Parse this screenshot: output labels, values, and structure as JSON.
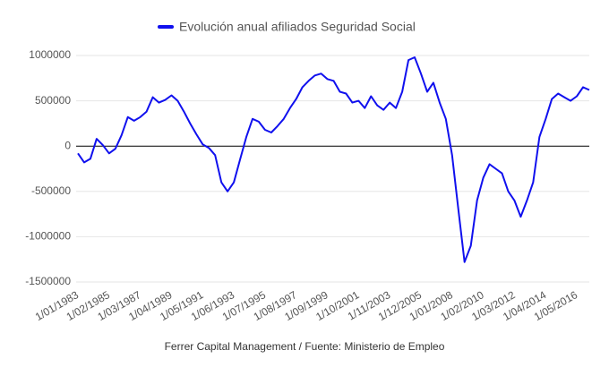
{
  "chart_data": {
    "type": "line",
    "categories": [
      "1/01/1983",
      null,
      null,
      null,
      null,
      "1/02/1985",
      null,
      null,
      null,
      null,
      "1/03/1987",
      null,
      null,
      null,
      null,
      "1/04/1989",
      null,
      null,
      null,
      null,
      "1/05/1991",
      null,
      null,
      null,
      null,
      "1/06/1993",
      null,
      null,
      null,
      null,
      "1/07/1995",
      null,
      null,
      null,
      null,
      "1/08/1997",
      null,
      null,
      null,
      null,
      "1/09/1999",
      null,
      null,
      null,
      null,
      "1/10/2001",
      null,
      null,
      null,
      null,
      "1/11/2003",
      null,
      null,
      null,
      null,
      "1/12/2005",
      null,
      null,
      null,
      null,
      "1/01/2008",
      null,
      null,
      null,
      null,
      "1/02/2010",
      null,
      null,
      null,
      null,
      "1/03/2012",
      null,
      null,
      null,
      null,
      "1/04/2014",
      null,
      null,
      null,
      null,
      "1/05/2016",
      null,
      null
    ],
    "series": [
      {
        "name": "Evolución anual afiliados Seguridad Social",
        "color": "#1010ee",
        "values": [
          -80000,
          -180000,
          -140000,
          80000,
          10000,
          -80000,
          -30000,
          120000,
          320000,
          280000,
          320000,
          380000,
          540000,
          480000,
          510000,
          560000,
          500000,
          380000,
          250000,
          130000,
          20000,
          -20000,
          -100000,
          -400000,
          -500000,
          -400000,
          -150000,
          100000,
          300000,
          270000,
          180000,
          150000,
          220000,
          300000,
          420000,
          520000,
          650000,
          720000,
          780000,
          800000,
          740000,
          720000,
          600000,
          580000,
          480000,
          500000,
          420000,
          550000,
          450000,
          400000,
          480000,
          420000,
          600000,
          950000,
          980000,
          800000,
          600000,
          700000,
          480000,
          300000,
          -100000,
          -700000,
          -1280000,
          -1100000,
          -600000,
          -350000,
          -200000,
          -250000,
          -300000,
          -500000,
          -600000,
          -780000,
          -600000,
          -400000,
          100000,
          300000,
          520000,
          580000,
          540000,
          500000,
          550000,
          650000,
          620000
        ]
      }
    ],
    "ylim": [
      -1500000,
      1000000
    ],
    "yticks": [
      -1500000,
      -1000000,
      -500000,
      0,
      500000,
      1000000
    ],
    "grid": true,
    "legend": "top",
    "source": "Ferrer Capital Management / Fuente: Ministerio de Empleo"
  }
}
